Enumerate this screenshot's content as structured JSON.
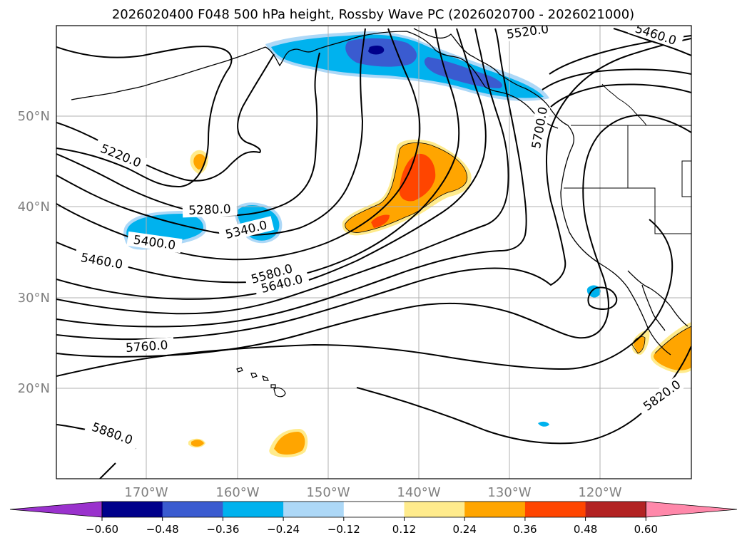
{
  "title": "2026020400 F048 500 hPa height, Rossby Wave PC (2026020700 - 2026021000)",
  "lat_ticks": [
    "50°N",
    "40°N",
    "30°N",
    "20°N"
  ],
  "lon_ticks": [
    "170°W",
    "160°W",
    "150°W",
    "140°W",
    "130°W",
    "120°W"
  ],
  "contour_labels": [
    "5520.0",
    "5460.0",
    "5700.0",
    "5220.0",
    "5280.0",
    "5340.0",
    "5400.0",
    "5460.0",
    "5580.0",
    "5640.0",
    "5760.0",
    "5820.0",
    "5880.0"
  ],
  "colorbar": {
    "ticks": [
      "−0.60",
      "−0.48",
      "−0.36",
      "−0.24",
      "−0.12",
      "0.12",
      "0.24",
      "0.36",
      "0.48",
      "0.60"
    ],
    "colors": [
      "#9a32cd",
      "#00008b",
      "#3a5bd0",
      "#00b2ee",
      "#add8f7",
      "#ffffff",
      "#ffeb8c",
      "#ffa500",
      "#ff4500",
      "#b22222",
      "#ff88aa"
    ]
  },
  "colors": {
    "neg_strong": "#3a5bd0",
    "neg_mid": "#00b2ee",
    "neg_weak": "#add8f7",
    "neg_max": "#00008b",
    "pos_weak": "#ffeb8c",
    "pos_mid": "#ffa500",
    "pos_strong": "#ff4500"
  }
}
